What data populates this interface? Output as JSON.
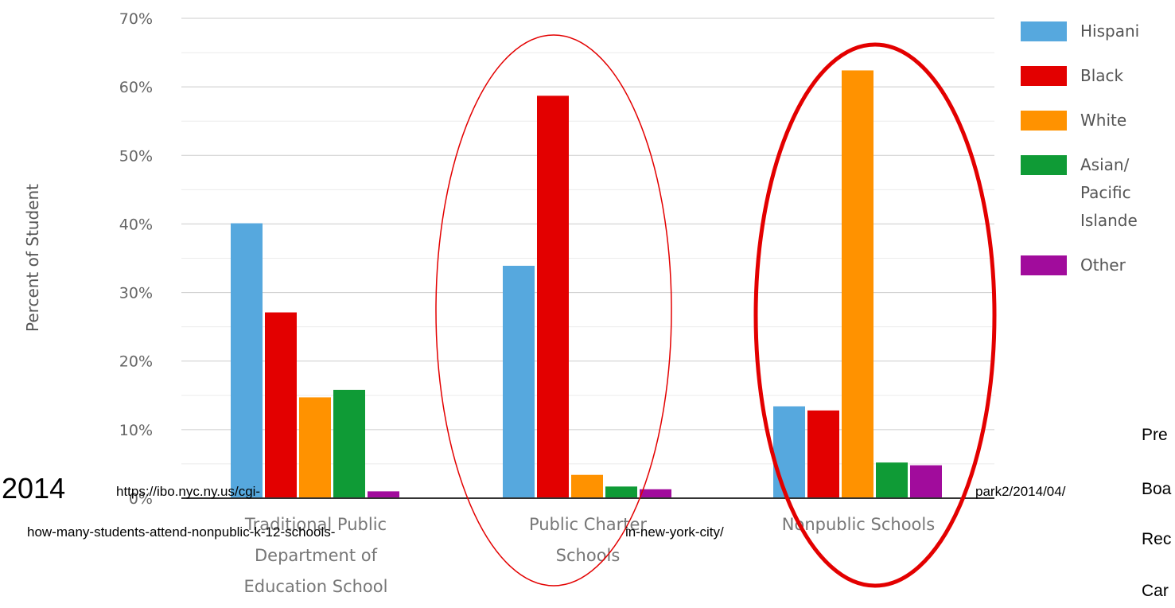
{
  "chart_data": {
    "type": "bar",
    "ylabel": "Percent of Student",
    "xlabel": "",
    "ylim": [
      0,
      70
    ],
    "yticks": [
      "0%",
      "10%",
      "20%",
      "30%",
      "40%",
      "50%",
      "60%",
      "70%"
    ],
    "categories": [
      [
        "Traditional Public",
        "Department of",
        "Education School"
      ],
      [
        "Public Charter",
        "Schools"
      ],
      [
        "Nonpublic Schools"
      ]
    ],
    "series": [
      {
        "name": "Hispanic",
        "legend_lines": [
          "Hispani"
        ],
        "color": "#56a8de",
        "values": [
          40.1,
          33.9,
          13.4
        ]
      },
      {
        "name": "Black",
        "legend_lines": [
          "Black"
        ],
        "color": "#e30000",
        "values": [
          27.1,
          58.7,
          12.8
        ]
      },
      {
        "name": "White",
        "legend_lines": [
          "White"
        ],
        "color": "#ff9200",
        "values": [
          14.7,
          3.4,
          62.4
        ]
      },
      {
        "name": "Asian/Pacific Islander",
        "legend_lines": [
          "Asian/",
          "Pacific",
          "Islande"
        ],
        "color": "#0f9b36",
        "values": [
          15.8,
          1.7,
          5.2
        ]
      },
      {
        "name": "Other",
        "legend_lines": [
          "Other"
        ],
        "color": "#a10c9c",
        "values": [
          1.0,
          1.3,
          4.8
        ]
      }
    ],
    "grid": true,
    "legend_position": "right",
    "highlight_circles": [
      {
        "category_index": 1,
        "color": "#e30000",
        "style": "thin"
      },
      {
        "category_index": 2,
        "color": "#e30000",
        "style": "thick"
      }
    ]
  },
  "overlay": {
    "year": "2014",
    "url_line1_left": "https://ibo.nyc.ny.us/cgi-",
    "url_line1_right": "park2/2014/04/",
    "url_line2_left": "how-many-students-attend-nonpublic-k-12-schools-",
    "url_line2_right": "in-new-york-city/",
    "side_lines": [
      "Pre",
      "Boa",
      "Rec",
      "Car"
    ]
  }
}
